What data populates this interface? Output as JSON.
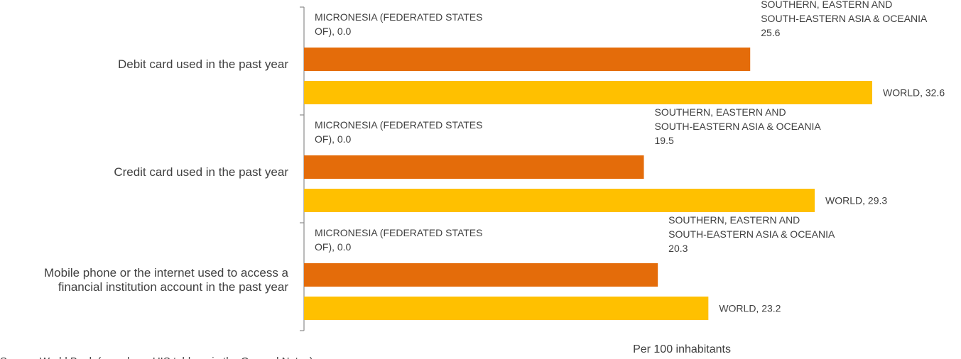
{
  "chart_data": {
    "type": "bar",
    "orientation": "horizontal",
    "categories": [
      "Debit card used in the past year",
      "Credit card used in the past year",
      "Mobile phone or the internet used to access a financial institution account in the past year"
    ],
    "category_label_lines": [
      [
        "Debit card used in the past year"
      ],
      [
        "Credit card used in the past year"
      ],
      [
        "Mobile phone or the internet used to access a",
        "financial institution account in the past year"
      ]
    ],
    "series": [
      {
        "name": "MICRONESIA (FEDERATED STATES OF)",
        "label_lines": [
          "MICRONESIA (FEDERATED STATES",
          "OF)"
        ],
        "color": "#A6A6A6",
        "values": [
          0.0,
          0.0,
          0.0
        ]
      },
      {
        "name": "SOUTHERN, EASTERN AND SOUTH-EASTERN ASIA & OCEANIA",
        "label_lines": [
          "SOUTHERN, EASTERN AND",
          "SOUTH-EASTERN ASIA & OCEANIA"
        ],
        "color": "#E46C0A",
        "values": [
          25.6,
          19.5,
          20.3
        ]
      },
      {
        "name": "WORLD",
        "label_lines": [
          "WORLD"
        ],
        "color": "#FFC000",
        "values": [
          32.6,
          29.3,
          23.2
        ]
      }
    ],
    "xlabel": "Per 100 inhabitants",
    "ylabel": "",
    "xlim": [
      0,
      40
    ],
    "grid": false,
    "legend": "none",
    "source": "Source: World Bank (see also a UIS table or in the General Notes)."
  }
}
